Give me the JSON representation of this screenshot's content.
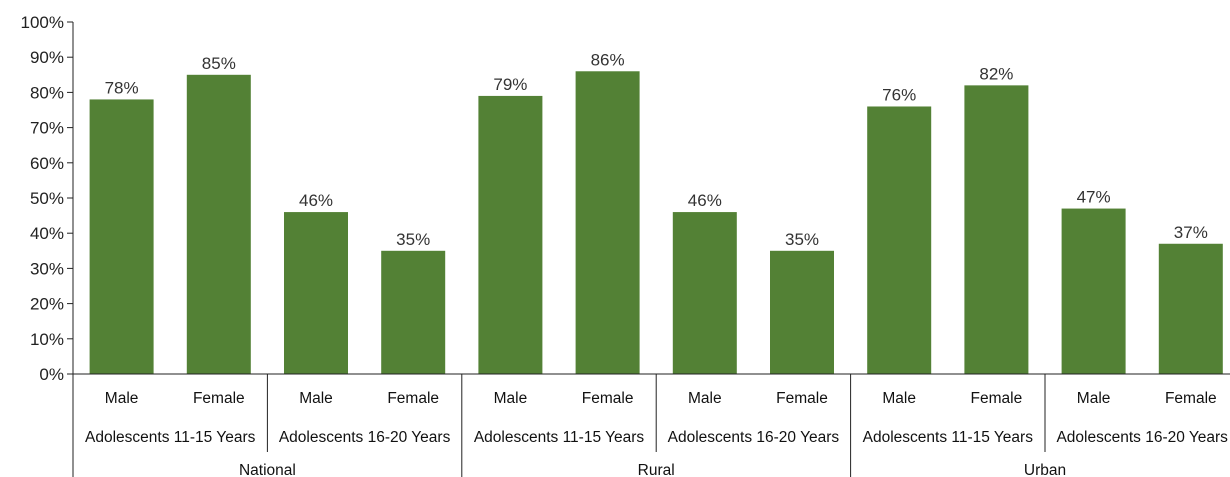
{
  "chart_data": {
    "type": "bar",
    "title": "",
    "xlabel": "",
    "ylabel": "",
    "ylim": [
      0,
      100
    ],
    "yticks": [
      "0%",
      "10%",
      "20%",
      "30%",
      "40%",
      "50%",
      "60%",
      "70%",
      "80%",
      "90%",
      "100%"
    ],
    "bar_color": "#538135",
    "grid": false,
    "legend": "none",
    "categories": [
      {
        "sex": "Male",
        "age_group": "Adolescents 11-15 Years",
        "region": "National",
        "value": 78,
        "label": "78%"
      },
      {
        "sex": "Female",
        "age_group": "Adolescents 11-15 Years",
        "region": "National",
        "value": 85,
        "label": "85%"
      },
      {
        "sex": "Male",
        "age_group": "Adolescents 16-20 Years",
        "region": "National",
        "value": 46,
        "label": "46%"
      },
      {
        "sex": "Female",
        "age_group": "Adolescents 16-20 Years",
        "region": "National",
        "value": 35,
        "label": "35%"
      },
      {
        "sex": "Male",
        "age_group": "Adolescents 11-15 Years",
        "region": "Rural",
        "value": 79,
        "label": "79%"
      },
      {
        "sex": "Female",
        "age_group": "Adolescents 11-15 Years",
        "region": "Rural",
        "value": 86,
        "label": "86%"
      },
      {
        "sex": "Male",
        "age_group": "Adolescents 16-20 Years",
        "region": "Rural",
        "value": 46,
        "label": "46%"
      },
      {
        "sex": "Female",
        "age_group": "Adolescents 16-20 Years",
        "region": "Rural",
        "value": 35,
        "label": "35%"
      },
      {
        "sex": "Male",
        "age_group": "Adolescents 11-15 Years",
        "region": "Urban",
        "value": 76,
        "label": "76%"
      },
      {
        "sex": "Female",
        "age_group": "Adolescents 11-15 Years",
        "region": "Urban",
        "value": 82,
        "label": "82%"
      },
      {
        "sex": "Male",
        "age_group": "Adolescents 16-20 Years",
        "region": "Urban",
        "value": 47,
        "label": "47%"
      },
      {
        "sex": "Female",
        "age_group": "Adolescents 16-20 Years",
        "region": "Urban",
        "value": 37,
        "label": "37%"
      }
    ],
    "age_groups": [
      "Adolescents 11-15 Years",
      "Adolescents 16-20 Years",
      "Adolescents 11-15 Years",
      "Adolescents 16-20 Years",
      "Adolescents 11-15 Years",
      "Adolescents 16-20 Years"
    ],
    "regions": [
      "National",
      "Rural",
      "Urban"
    ]
  }
}
